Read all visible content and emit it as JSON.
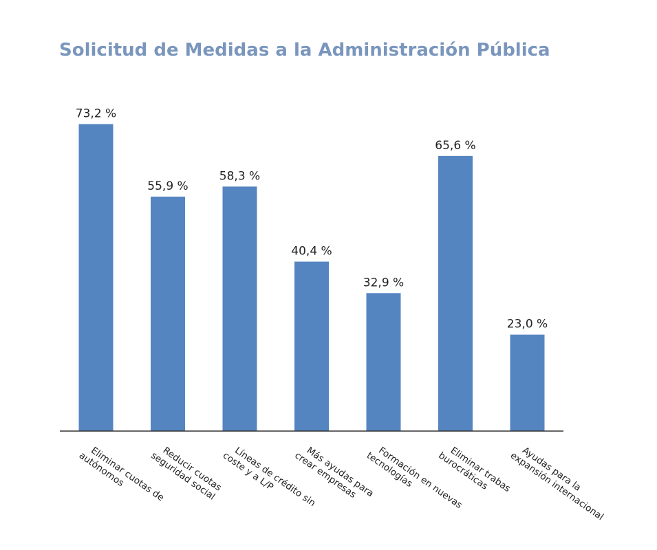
{
  "chart_data": {
    "type": "bar",
    "title": "Solicitud de Medidas a la Administración Pública",
    "xlabel": "",
    "ylabel": "",
    "ylim": [
      0,
      80
    ],
    "grid": false,
    "legend": "none",
    "bar_color": "#5585c1",
    "categories": [
      [
        "Eliminar cuotas de",
        "autónomos"
      ],
      [
        "Reducir cuotas",
        "seguridad social"
      ],
      [
        "Líneas de crédito sin",
        "coste y a L/P"
      ],
      [
        "Más ayudas para",
        "crear empresas"
      ],
      [
        "Formación en nuevas",
        "tecnologías"
      ],
      [
        "Eliminar trabas",
        "burocráticas"
      ],
      [
        "Ayudas para la",
        "expansión internacional"
      ]
    ],
    "values": [
      73.2,
      55.9,
      58.3,
      40.4,
      32.9,
      65.6,
      23.0
    ],
    "value_labels": [
      "73,2 %",
      "55,9 %",
      "58,3 %",
      "40,4 %",
      "32,9 %",
      "65,6 %",
      "23,0 %"
    ]
  }
}
